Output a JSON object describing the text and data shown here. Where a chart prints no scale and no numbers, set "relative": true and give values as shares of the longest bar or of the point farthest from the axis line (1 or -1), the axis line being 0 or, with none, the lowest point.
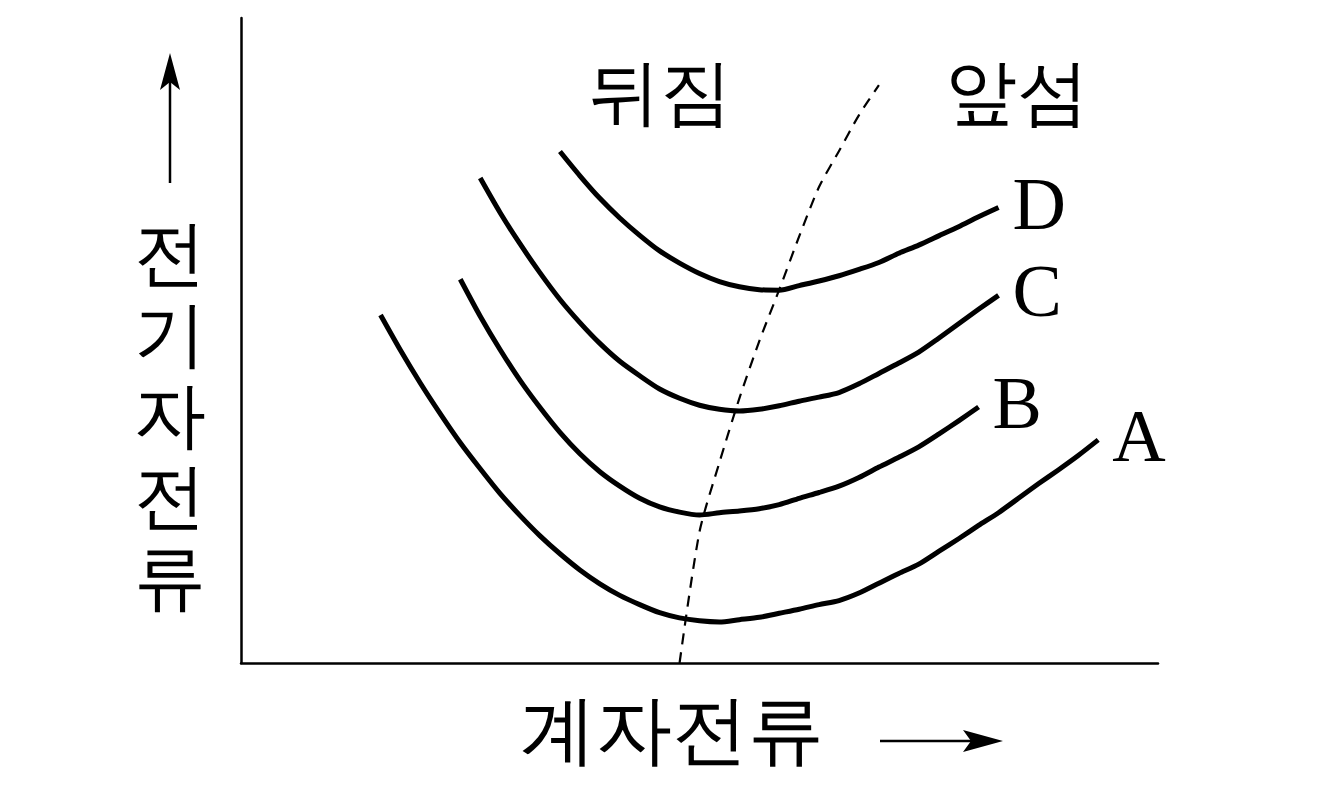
{
  "chart_data": {
    "type": "line",
    "relative": true,
    "xlabel": "계자전류",
    "ylabel": "전기자전류",
    "annotations": [
      "뒤짐",
      "앞섬"
    ],
    "marker": "none",
    "line_style": "solid",
    "categories": [
      null,
      null,
      null,
      null,
      null,
      null,
      null,
      null,
      null,
      null,
      null,
      null,
      null,
      null,
      null,
      null,
      null,
      null,
      null,
      null,
      null,
      null,
      null,
      null,
      null,
      null,
      null,
      null,
      null,
      null,
      null,
      null,
      null,
      null,
      null,
      null,
      null,
      null,
      null,
      null,
      null,
      null,
      null,
      null,
      null,
      null,
      null
    ],
    "series": [
      {
        "name": "A",
        "color": "#000000",
        "values": [
          null,
          null,
          null,
          null,
          null,
          null,
          null,
          0.602,
          0.541,
          0.484,
          0.431,
          0.381,
          0.336,
          0.293,
          0.255,
          0.22,
          0.189,
          0.161,
          0.137,
          0.117,
          0.101,
          0.087,
          0.078,
          0.073,
          0.071,
          0.075,
          0.079,
          0.086,
          0.093,
          0.101,
          0.108,
          0.121,
          0.138,
          0.155,
          0.171,
          0.193,
          0.215,
          0.238,
          0.26,
          0.285,
          0.31,
          0.334,
          0.359,
          0.386,
          null,
          null,
          null
        ]
      },
      {
        "name": "B",
        "color": "#000000",
        "values": [
          null,
          null,
          null,
          null,
          null,
          null,
          null,
          null,
          null,
          null,
          null,
          0.664,
          0.6,
          0.542,
          0.489,
          0.442,
          0.399,
          0.362,
          0.331,
          0.306,
          0.285,
          0.27,
          0.261,
          0.256,
          0.26,
          0.263,
          0.267,
          0.274,
          0.285,
          0.295,
          0.306,
          0.321,
          0.339,
          0.356,
          0.374,
          0.396,
          0.419,
          0.443,
          null,
          null,
          null,
          null,
          null,
          null,
          null,
          null,
          null
        ]
      },
      {
        "name": "C",
        "color": "#000000",
        "values": [
          null,
          null,
          null,
          null,
          null,
          null,
          null,
          null,
          null,
          null,
          null,
          null,
          0.839,
          0.779,
          0.725,
          0.675,
          0.629,
          0.589,
          0.553,
          0.522,
          0.497,
          0.474,
          0.458,
          0.446,
          0.439,
          0.436,
          0.439,
          0.445,
          0.453,
          0.46,
          0.468,
          0.483,
          0.501,
          0.519,
          0.538,
          0.562,
          0.587,
          0.612,
          0.636,
          null,
          null,
          null,
          null,
          null,
          null,
          null,
          null
        ]
      },
      {
        "name": "D",
        "color": "#000000",
        "values": [
          null,
          null,
          null,
          null,
          null,
          null,
          null,
          null,
          null,
          null,
          null,
          null,
          null,
          null,
          null,
          null,
          0.885,
          0.843,
          0.804,
          0.77,
          0.74,
          0.713,
          0.692,
          0.674,
          0.66,
          0.651,
          0.646,
          0.645,
          0.653,
          0.661,
          0.67,
          0.681,
          0.693,
          0.709,
          0.723,
          0.739,
          0.755,
          0.772,
          0.788,
          null,
          null,
          null,
          null,
          null,
          null,
          null,
          null
        ]
      },
      {
        "color": "#000000",
        "line_style": "dashed",
        "values": [
          null,
          null,
          null,
          null,
          null,
          null,
          null,
          null,
          null,
          null,
          null,
          null,
          null,
          null,
          null,
          null,
          null,
          null,
          null,
          null,
          null,
          null,
          0,
          0.227,
          0.347,
          0.458,
          0.557,
          0.646,
          0.738,
          0.824,
          0.886,
          0.948,
          1.0,
          null,
          null,
          null,
          null,
          null,
          null,
          null,
          null,
          null,
          null,
          null,
          null,
          null,
          null
        ]
      }
    ]
  }
}
